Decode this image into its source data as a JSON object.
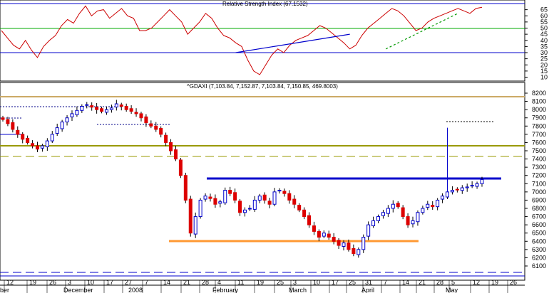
{
  "chart_data": [
    {
      "type": "line",
      "title": "Relative Strength Index (67.1532)",
      "ylim": [
        5,
        70
      ],
      "yticks": [
        10,
        15,
        20,
        25,
        30,
        35,
        40,
        45,
        50,
        55,
        60,
        65
      ],
      "reference_lines": [
        30,
        50,
        70
      ],
      "rsi_values": [
        48,
        42,
        36,
        33,
        40,
        32,
        26,
        35,
        40,
        44,
        52,
        57,
        54,
        62,
        68,
        60,
        64,
        65,
        58,
        62,
        66,
        60,
        58,
        48,
        48,
        50,
        55,
        60,
        65,
        60,
        55,
        45,
        50,
        55,
        62,
        58,
        50,
        44,
        42,
        38,
        35,
        24,
        15,
        12,
        20,
        28,
        33,
        30,
        36,
        40,
        42,
        44,
        48,
        52,
        50,
        46,
        42,
        38,
        33,
        36,
        44,
        50,
        54,
        58,
        62,
        66,
        64,
        60,
        54,
        48,
        50,
        55,
        58,
        60,
        62,
        64,
        66,
        64,
        62,
        66,
        67
      ],
      "trendlines": [
        {
          "color": "#0000cc",
          "from": [
            39,
            30
          ],
          "to": [
            58,
            45
          ]
        },
        {
          "color": "#009900",
          "style": "dashed",
          "from": [
            64,
            33
          ],
          "to": [
            76,
            62
          ]
        }
      ]
    },
    {
      "type": "candlestick",
      "title": "^GDAXI (7,103.84, 7,152.87, 7,103.84, 7,150.85, 469.8003)",
      "ylim": [
        6050,
        8250
      ],
      "yticks": [
        6100,
        6200,
        6300,
        6400,
        6500,
        6600,
        6700,
        6800,
        6900,
        7000,
        7100,
        7200,
        7300,
        7400,
        7500,
        7600,
        7700,
        7800,
        7900,
        8000,
        8100,
        8200
      ],
      "x_tick_labels": [
        "12",
        "19",
        "26",
        "3",
        "10",
        "17",
        "27",
        "7",
        "14",
        "21",
        "28",
        "4",
        "11",
        "19",
        "25",
        "3",
        "10",
        "17",
        "25",
        "31",
        "7",
        "14",
        "21",
        "28",
        "5",
        "12",
        "19",
        "26"
      ],
      "month_labels": [
        "ber",
        "December",
        "2008",
        "February",
        "March",
        "April",
        "May"
      ],
      "closes": [
        7880,
        7830,
        7760,
        7700,
        7640,
        7600,
        7560,
        7520,
        7560,
        7620,
        7700,
        7780,
        7850,
        7900,
        7950,
        7990,
        8040,
        8060,
        8030,
        8000,
        7980,
        8000,
        8020,
        8070,
        8040,
        8000,
        7980,
        7950,
        7900,
        7840,
        7800,
        7760,
        7700,
        7600,
        7500,
        7400,
        7200,
        6900,
        6500,
        6700,
        6900,
        6950,
        6920,
        6850,
        6880,
        7020,
        6980,
        6900,
        6750,
        6780,
        6800,
        6900,
        6950,
        6900,
        6850,
        7000,
        7020,
        6980,
        6900,
        6850,
        6780,
        6700,
        6600,
        6520,
        6450,
        6500,
        6450,
        6400,
        6350,
        6380,
        6300,
        6250,
        6300,
        6450,
        6600,
        6650,
        6700,
        6750,
        6800,
        6850,
        6820,
        6700,
        6600,
        6650,
        6750,
        6800,
        6850,
        6820,
        6900,
        6950,
        7000,
        7020,
        7030,
        7050,
        7060,
        7080,
        7100,
        7150
      ],
      "support_resistance": [
        {
          "color": "#0000cc",
          "price": 7075
        },
        {
          "color": "#ff9933",
          "price": 6370
        }
      ]
    }
  ]
}
